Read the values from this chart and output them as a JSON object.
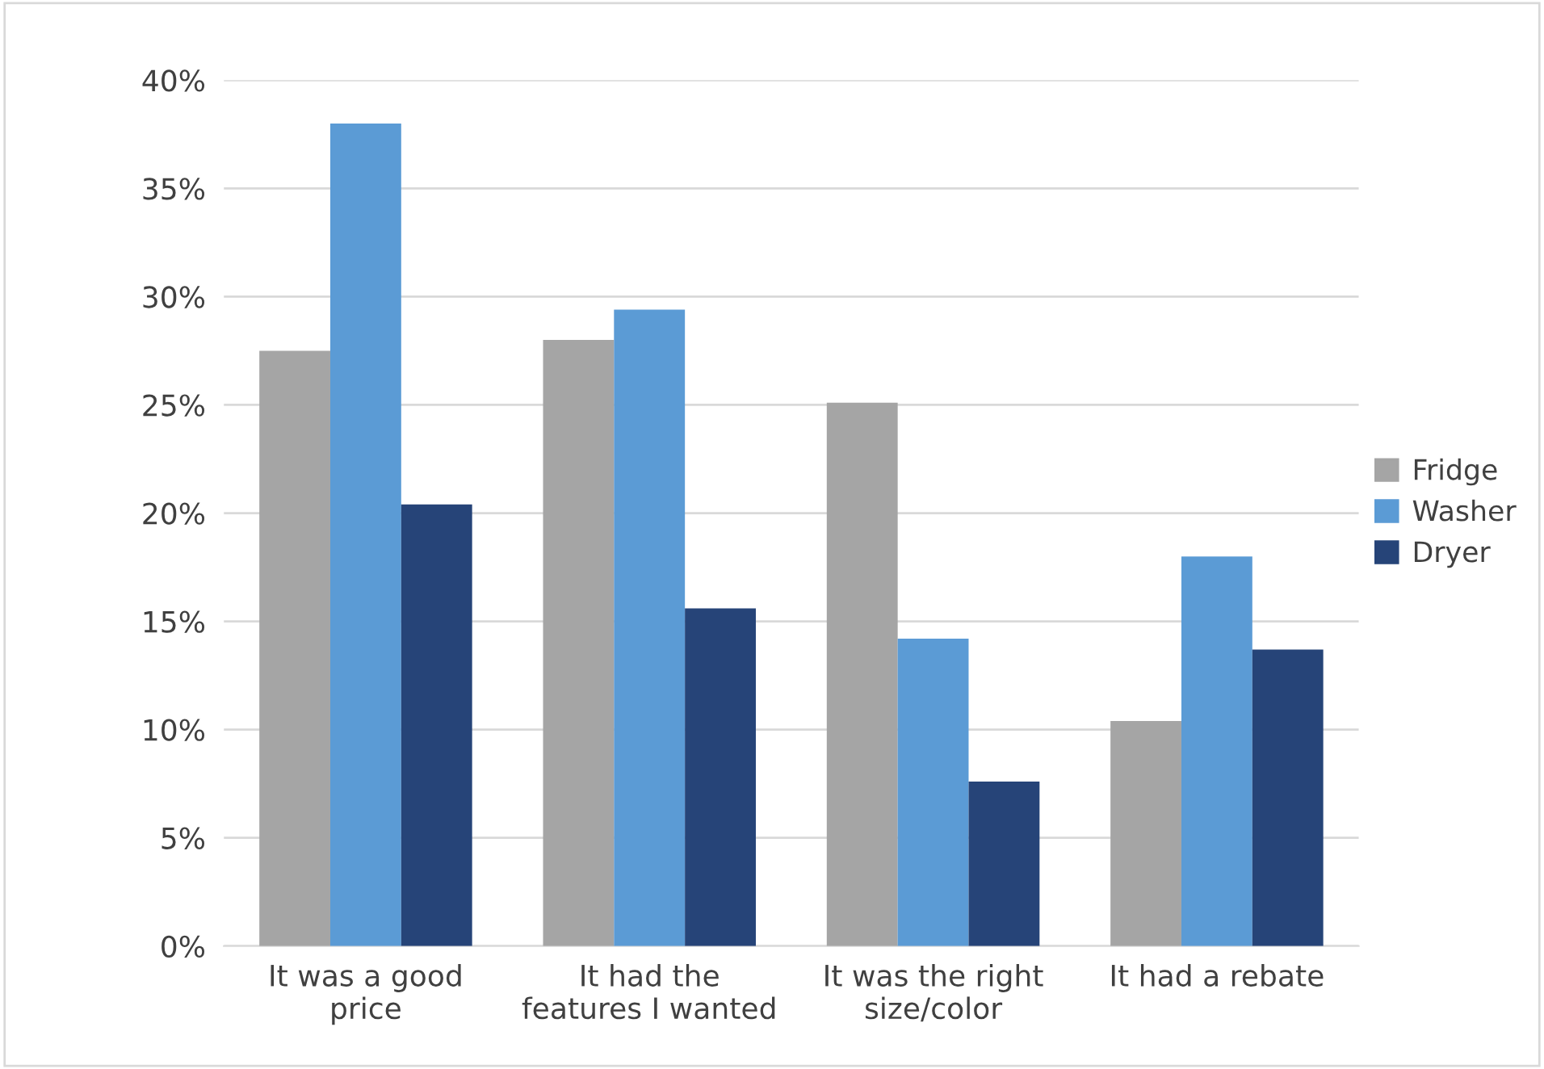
{
  "chart_data": {
    "type": "bar",
    "categories": [
      "It was a good\nprice",
      "It had the\nfeatures I wanted",
      "It was the right\nsize/color",
      "It had a rebate"
    ],
    "series": [
      {
        "name": "Fridge",
        "color": "#a5a5a5",
        "values": [
          27.5,
          28.0,
          25.1,
          10.4
        ]
      },
      {
        "name": "Washer",
        "color": "#5b9bd5",
        "values": [
          38.0,
          29.4,
          14.2,
          18.0
        ]
      },
      {
        "name": "Dryer",
        "color": "#264478",
        "values": [
          20.4,
          15.6,
          7.6,
          13.7
        ]
      }
    ],
    "ylim": [
      0,
      40
    ],
    "yticks": [
      {
        "value": 0,
        "label": "0%"
      },
      {
        "value": 5,
        "label": "5%"
      },
      {
        "value": 10,
        "label": "10%"
      },
      {
        "value": 15,
        "label": "15%"
      },
      {
        "value": 20,
        "label": "20%"
      },
      {
        "value": 25,
        "label": "25%"
      },
      {
        "value": 30,
        "label": "30%"
      },
      {
        "value": 35,
        "label": "35%"
      },
      {
        "value": 40,
        "label": "40%"
      }
    ],
    "grid": "y",
    "legend": "right"
  }
}
